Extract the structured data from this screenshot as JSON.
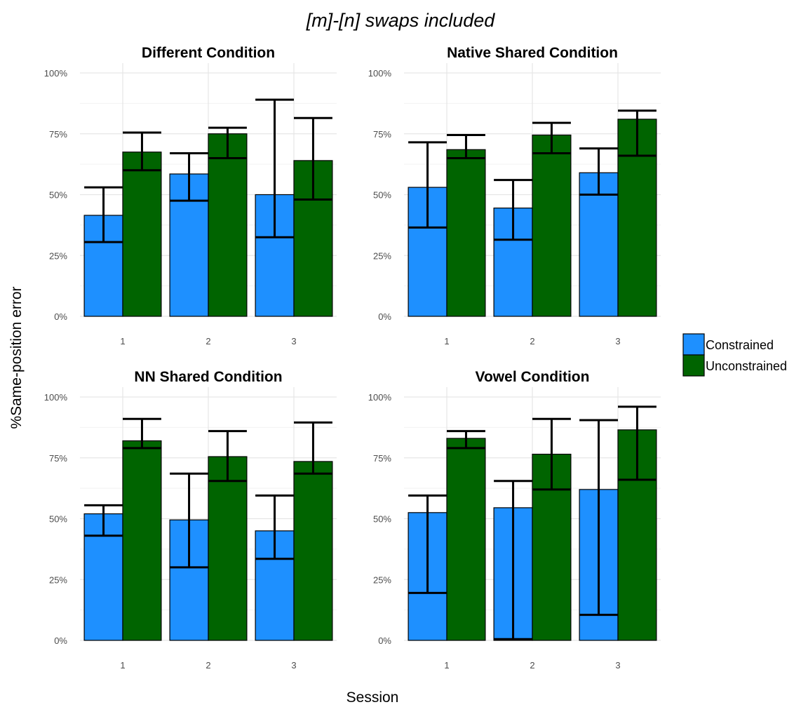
{
  "chart_data": {
    "type": "bar",
    "title": "[m]-[n] swaps included",
    "xlabel": "Session",
    "ylabel": "%Same-position error",
    "ylim": [
      0,
      100
    ],
    "y_ticks": [
      "0%",
      "25%",
      "50%",
      "75%",
      "100%"
    ],
    "y_tick_values": [
      0,
      25,
      50,
      75,
      100
    ],
    "categories": [
      "1",
      "2",
      "3"
    ],
    "legend": {
      "position": "right",
      "entries": [
        {
          "name": "Constrained",
          "color": "#1e90ff"
        },
        {
          "name": "Unconstrained",
          "color": "#006400"
        }
      ]
    },
    "grid": true,
    "facets": [
      {
        "title": "Different Condition",
        "series": [
          {
            "name": "Constrained",
            "values": [
              41.5,
              58.5,
              50
            ],
            "error_low": [
              30.5,
              47.5,
              32.5
            ],
            "error_high": [
              53,
              67,
              89
            ]
          },
          {
            "name": "Unconstrained",
            "values": [
              67.5,
              75,
              64
            ],
            "error_low": [
              60,
              65,
              48
            ],
            "error_high": [
              75.5,
              77.5,
              81.5
            ]
          }
        ]
      },
      {
        "title": "Native Shared Condition",
        "series": [
          {
            "name": "Constrained",
            "values": [
              53,
              44.5,
              59
            ],
            "error_low": [
              36.5,
              31.5,
              50
            ],
            "error_high": [
              71.5,
              56,
              69
            ]
          },
          {
            "name": "Unconstrained",
            "values": [
              68.5,
              74.5,
              81
            ],
            "error_low": [
              65,
              67,
              66
            ],
            "error_high": [
              74.5,
              79.5,
              84.5
            ]
          }
        ]
      },
      {
        "title": "NN Shared Condition",
        "series": [
          {
            "name": "Constrained",
            "values": [
              52,
              49.5,
              45
            ],
            "error_low": [
              43,
              30,
              33.5
            ],
            "error_high": [
              55.5,
              68.5,
              59.5
            ]
          },
          {
            "name": "Unconstrained",
            "values": [
              82,
              75.5,
              73.5
            ],
            "error_low": [
              79,
              65.5,
              68.5
            ],
            "error_high": [
              91,
              86,
              89.5
            ]
          }
        ]
      },
      {
        "title": "Vowel Condition",
        "series": [
          {
            "name": "Constrained",
            "values": [
              52.5,
              54.5,
              62
            ],
            "error_low": [
              19.5,
              0.5,
              10.5
            ],
            "error_high": [
              59.5,
              65.5,
              90.5
            ]
          },
          {
            "name": "Unconstrained",
            "values": [
              83,
              76.5,
              86.5
            ],
            "error_low": [
              79,
              62,
              66
            ],
            "error_high": [
              86,
              91,
              96
            ]
          }
        ]
      }
    ]
  }
}
